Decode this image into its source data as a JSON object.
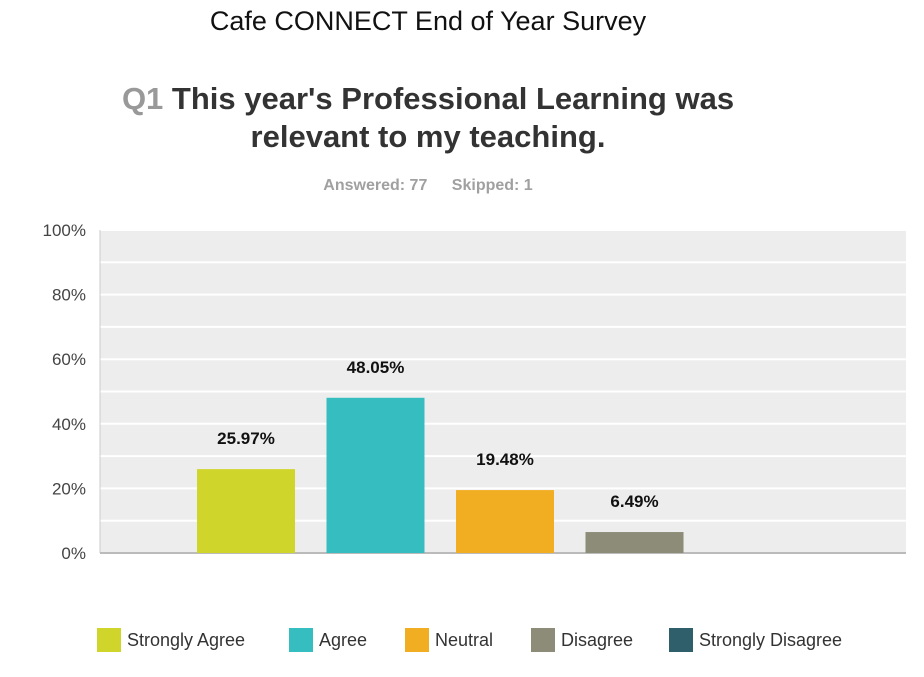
{
  "survey_title": "Cafe CONNECT End of Year Survey",
  "question": {
    "number": "Q1",
    "text_line1": "This year's Professional Learning was",
    "text_line2": "relevant to my teaching."
  },
  "stats": {
    "answered": "Answered: 77",
    "skipped": "Skipped: 1"
  },
  "chart_data": {
    "type": "bar",
    "categories": [
      "Strongly Agree",
      "Agree",
      "Neutral",
      "Disagree",
      "Strongly Disagree"
    ],
    "values": [
      25.97,
      48.05,
      19.48,
      6.49,
      0
    ],
    "value_labels": [
      "25.97%",
      "48.05%",
      "19.48%",
      "6.49%",
      ""
    ],
    "colors": [
      "#d0d52b",
      "#35bdc0",
      "#f2ae22",
      "#8c8c78",
      "#2e5f6a"
    ],
    "ylim": [
      0,
      100
    ],
    "yticks": [
      "0%",
      "20%",
      "40%",
      "60%",
      "80%",
      "100%"
    ],
    "grid": true,
    "legend_position": "bottom"
  }
}
